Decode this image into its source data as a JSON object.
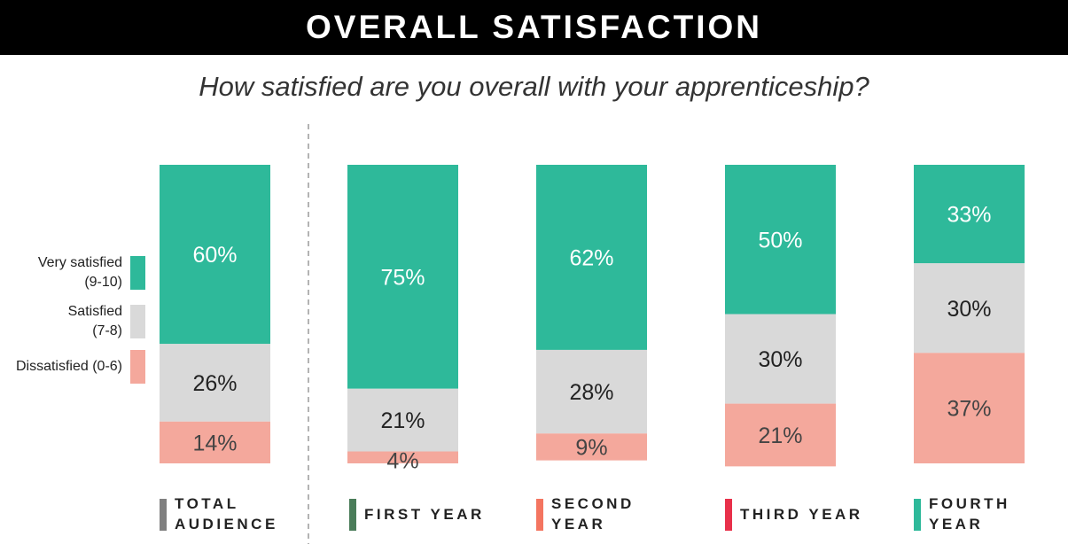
{
  "header": {
    "title": "OVERALL SATISFACTION",
    "subtitle": "How satisfied are you overall with your apprenticeship?"
  },
  "legend": [
    {
      "label": "Very satisfied\n(9-10)",
      "color": "#2eb99a"
    },
    {
      "label": "Satisfied\n(7-8)",
      "color": "#d9d9d9"
    },
    {
      "label": "Dissatisfied (0-6)",
      "color": "#f4a89c"
    }
  ],
  "chart_data": {
    "type": "bar",
    "stacked": true,
    "categories": [
      "TOTAL\nAUDIENCE",
      "FIRST YEAR",
      "SECOND\nYEAR",
      "THIRD YEAR",
      "FOURTH\nYEAR"
    ],
    "category_colors": [
      "#808080",
      "#4a7c59",
      "#f47560",
      "#e8304a",
      "#2eb99a"
    ],
    "series": [
      {
        "name": "Very satisfied (9-10)",
        "color": "#2eb99a",
        "values": [
          60,
          75,
          62,
          50,
          33
        ]
      },
      {
        "name": "Satisfied (7-8)",
        "color": "#d9d9d9",
        "values": [
          26,
          21,
          28,
          30,
          30
        ]
      },
      {
        "name": "Dissatisfied (0-6)",
        "color": "#f4a89c",
        "values": [
          14,
          4,
          9,
          21,
          37
        ]
      }
    ],
    "value_labels": [
      [
        "60%",
        "75%",
        "62%",
        "50%",
        "33%"
      ],
      [
        "26%",
        "21%",
        "28%",
        "30%",
        "30%"
      ],
      [
        "14%",
        "4%",
        "9%",
        "21%",
        "37%"
      ]
    ],
    "label_colors": [
      "#ffffff",
      "#222222",
      "#444444"
    ],
    "ylim": [
      0,
      100
    ],
    "divider_after_category": 0
  }
}
